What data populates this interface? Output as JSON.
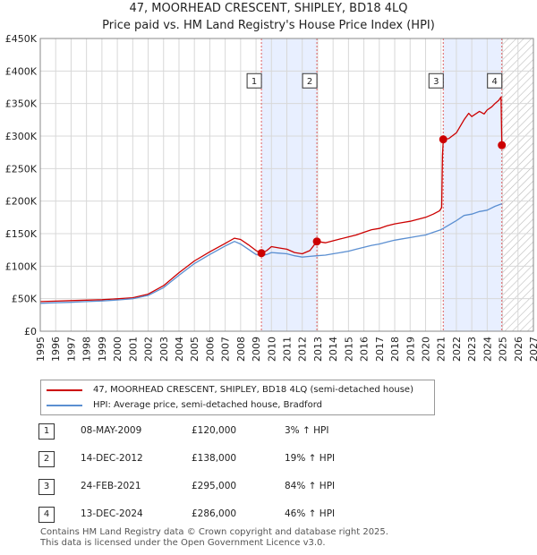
{
  "title": {
    "line1": "47, MOORHEAD CRESCENT, SHIPLEY, BD18 4LQ",
    "line2": "Price paid vs. HM Land Registry's House Price Index (HPI)"
  },
  "colors": {
    "property": "#cc0000",
    "hpi": "#5b8fd1",
    "shade": "#e8efff",
    "vline": "#e06060",
    "grid": "#d8d8d8"
  },
  "chart_data": {
    "type": "line",
    "title": "Price paid vs. HM Land Registry's House Price Index (HPI)",
    "xlabel": "",
    "ylabel": "",
    "xlim": [
      1995,
      2027
    ],
    "ylim": [
      0,
      450000
    ],
    "x_ticks": [
      1995,
      1996,
      1997,
      1998,
      1999,
      2000,
      2001,
      2002,
      2003,
      2004,
      2005,
      2006,
      2007,
      2008,
      2009,
      2010,
      2011,
      2012,
      2013,
      2014,
      2015,
      2016,
      2017,
      2018,
      2019,
      2020,
      2021,
      2022,
      2023,
      2024,
      2025,
      2026,
      2027
    ],
    "y_ticks": [
      {
        "value": 0,
        "label": "£0"
      },
      {
        "value": 50000,
        "label": "£50K"
      },
      {
        "value": 100000,
        "label": "£100K"
      },
      {
        "value": 150000,
        "label": "£150K"
      },
      {
        "value": 200000,
        "label": "£200K"
      },
      {
        "value": 250000,
        "label": "£250K"
      },
      {
        "value": 300000,
        "label": "£300K"
      },
      {
        "value": 350000,
        "label": "£350K"
      },
      {
        "value": 400000,
        "label": "£400K"
      },
      {
        "value": 450000,
        "label": "£450K"
      }
    ],
    "grid": true,
    "shaded_ranges": [
      [
        2009.35,
        2012.95
      ],
      [
        2021.15,
        2024.95
      ]
    ],
    "hatched_range": [
      2025.0,
      2027
    ],
    "series": [
      {
        "name": "47, MOORHEAD CRESCENT, SHIPLEY, BD18 4LQ (semi-detached house)",
        "color": "#cc0000",
        "points": [
          [
            1995.0,
            45500
          ],
          [
            1996.0,
            46200
          ],
          [
            1997.0,
            47000
          ],
          [
            1998.0,
            47800
          ],
          [
            1999.0,
            48500
          ],
          [
            2000.0,
            49800
          ],
          [
            2001.0,
            51500
          ],
          [
            2002.0,
            57000
          ],
          [
            2003.0,
            70000
          ],
          [
            2004.0,
            90000
          ],
          [
            2005.0,
            108000
          ],
          [
            2006.0,
            122000
          ],
          [
            2007.0,
            135000
          ],
          [
            2007.6,
            143000
          ],
          [
            2008.0,
            141000
          ],
          [
            2008.5,
            133000
          ],
          [
            2009.0,
            124000
          ],
          [
            2009.35,
            120000
          ],
          [
            2009.7,
            124000
          ],
          [
            2010.0,
            130000
          ],
          [
            2010.5,
            128000
          ],
          [
            2011.0,
            126000
          ],
          [
            2011.5,
            121000
          ],
          [
            2012.0,
            119000
          ],
          [
            2012.5,
            124000
          ],
          [
            2012.95,
            138000
          ],
          [
            2013.5,
            136000
          ],
          [
            2014.0,
            139000
          ],
          [
            2014.5,
            142000
          ],
          [
            2015.0,
            145000
          ],
          [
            2015.5,
            148000
          ],
          [
            2016.0,
            152000
          ],
          [
            2016.5,
            156000
          ],
          [
            2017.0,
            158000
          ],
          [
            2017.5,
            162000
          ],
          [
            2018.0,
            165000
          ],
          [
            2018.5,
            167000
          ],
          [
            2019.0,
            169000
          ],
          [
            2019.5,
            172000
          ],
          [
            2020.0,
            175000
          ],
          [
            2020.5,
            180000
          ],
          [
            2020.9,
            185000
          ],
          [
            2021.05,
            190000
          ],
          [
            2021.1,
            270000
          ],
          [
            2021.15,
            295000
          ],
          [
            2021.5,
            296000
          ],
          [
            2022.0,
            305000
          ],
          [
            2022.5,
            325000
          ],
          [
            2022.8,
            335000
          ],
          [
            2023.0,
            330000
          ],
          [
            2023.5,
            338000
          ],
          [
            2023.8,
            334000
          ],
          [
            2024.0,
            340000
          ],
          [
            2024.3,
            345000
          ],
          [
            2024.5,
            350000
          ],
          [
            2024.75,
            355000
          ],
          [
            2024.9,
            360000
          ],
          [
            2024.95,
            286000
          ]
        ]
      },
      {
        "name": "HPI: Average price, semi-detached house, Bradford",
        "color": "#5b8fd1",
        "points": [
          [
            1995.0,
            43000
          ],
          [
            1996.0,
            43800
          ],
          [
            1997.0,
            44500
          ],
          [
            1998.0,
            45500
          ],
          [
            1999.0,
            46500
          ],
          [
            2000.0,
            48000
          ],
          [
            2001.0,
            50000
          ],
          [
            2002.0,
            55000
          ],
          [
            2003.0,
            67000
          ],
          [
            2004.0,
            86000
          ],
          [
            2005.0,
            104000
          ],
          [
            2006.0,
            118000
          ],
          [
            2007.0,
            131000
          ],
          [
            2007.6,
            138000
          ],
          [
            2008.0,
            134000
          ],
          [
            2008.5,
            126000
          ],
          [
            2009.0,
            118000
          ],
          [
            2009.35,
            116000
          ],
          [
            2009.7,
            118000
          ],
          [
            2010.0,
            121000
          ],
          [
            2010.5,
            120000
          ],
          [
            2011.0,
            119000
          ],
          [
            2011.5,
            116000
          ],
          [
            2012.0,
            114000
          ],
          [
            2012.5,
            115000
          ],
          [
            2012.95,
            116000
          ],
          [
            2013.5,
            117000
          ],
          [
            2014.0,
            119000
          ],
          [
            2014.5,
            121000
          ],
          [
            2015.0,
            123000
          ],
          [
            2015.5,
            126000
          ],
          [
            2016.0,
            129000
          ],
          [
            2016.5,
            132000
          ],
          [
            2017.0,
            134000
          ],
          [
            2017.5,
            137000
          ],
          [
            2018.0,
            140000
          ],
          [
            2018.5,
            142000
          ],
          [
            2019.0,
            144000
          ],
          [
            2019.5,
            146000
          ],
          [
            2020.0,
            148000
          ],
          [
            2020.5,
            152000
          ],
          [
            2021.0,
            156000
          ],
          [
            2021.5,
            163000
          ],
          [
            2022.0,
            170000
          ],
          [
            2022.5,
            178000
          ],
          [
            2023.0,
            180000
          ],
          [
            2023.5,
            184000
          ],
          [
            2024.0,
            186000
          ],
          [
            2024.5,
            192000
          ],
          [
            2024.95,
            196000
          ]
        ]
      }
    ],
    "transactions": [
      {
        "id": "1",
        "x": 2009.35,
        "price": 120000
      },
      {
        "id": "2",
        "x": 2012.95,
        "price": 138000
      },
      {
        "id": "3",
        "x": 2021.15,
        "price": 295000
      },
      {
        "id": "4",
        "x": 2024.95,
        "price": 286000
      }
    ],
    "marker_label_value": 385000
  },
  "legend": {
    "property_label": "47, MOORHEAD CRESCENT, SHIPLEY, BD18 4LQ (semi-detached house)",
    "hpi_label": "HPI: Average price, semi-detached house, Bradford"
  },
  "table": {
    "rows": [
      {
        "id": "1",
        "date": "08-MAY-2009",
        "price": "£120,000",
        "hpi": "3% ↑ HPI"
      },
      {
        "id": "2",
        "date": "14-DEC-2012",
        "price": "£138,000",
        "hpi": "19% ↑ HPI"
      },
      {
        "id": "3",
        "date": "24-FEB-2021",
        "price": "£295,000",
        "hpi": "84% ↑ HPI"
      },
      {
        "id": "4",
        "date": "13-DEC-2024",
        "price": "£286,000",
        "hpi": "46% ↑ HPI"
      }
    ]
  },
  "footer": {
    "line1": "Contains HM Land Registry data © Crown copyright and database right 2025.",
    "line2": "This data is licensed under the Open Government Licence v3.0."
  }
}
